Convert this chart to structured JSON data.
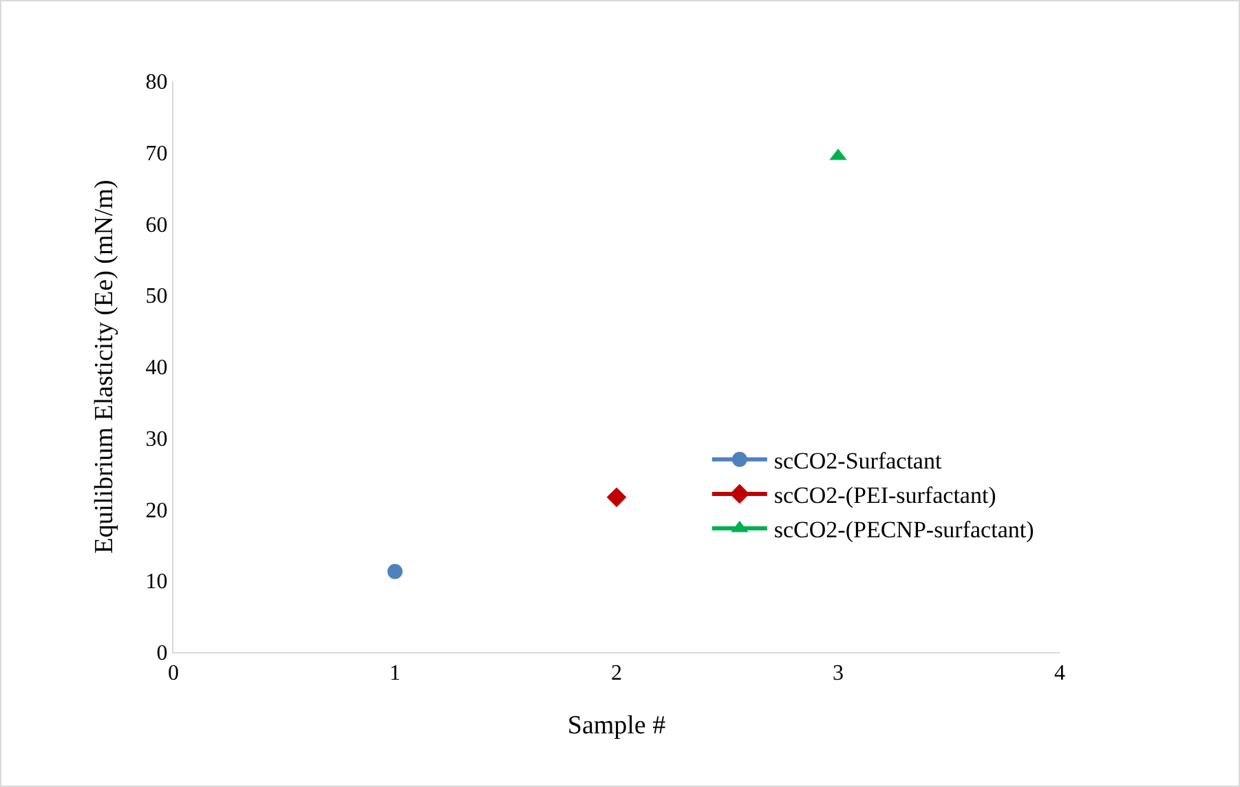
{
  "chart_data": {
    "type": "scatter",
    "xlabel": "Sample #",
    "ylabel": "Equilibrium Elasticity (Ee) (mN/m)",
    "xlim": [
      0,
      4
    ],
    "xticks": [
      0,
      1,
      2,
      3,
      4
    ],
    "ylim": [
      0,
      80
    ],
    "yticks": [
      0,
      10,
      20,
      30,
      40,
      50,
      60,
      70,
      80
    ],
    "grid": false,
    "legend": "bottom right",
    "series": [
      {
        "name": "scCO2-Surfactant",
        "color": "#4f81bd",
        "marker": "circle",
        "x": [
          1
        ],
        "values": [
          11.3
        ]
      },
      {
        "name": "scCO2-(PEI-surfactant)",
        "color": "#c00000",
        "marker": "diamond",
        "x": [
          2
        ],
        "values": [
          21.7
        ]
      },
      {
        "name": "scCO2-(PECNP-surfactant)",
        "color": "#00b050",
        "marker": "triangle",
        "x": [
          3
        ],
        "values": [
          69.5
        ]
      }
    ]
  }
}
